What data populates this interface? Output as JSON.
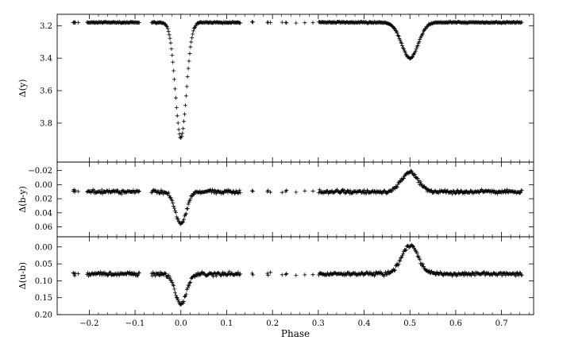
{
  "chart_data": [
    {
      "id": "y",
      "type": "scatter",
      "xlabel": "",
      "ylabel": "Δ(y)",
      "xlim": [
        -0.27,
        0.77
      ],
      "ylim": [
        3.13,
        4.04
      ],
      "y_inverted": true,
      "yticks": [
        "3.2",
        "3.4",
        "3.6",
        "3.8"
      ],
      "marker": "+",
      "baseline": 3.18,
      "eclipses": [
        {
          "phase": 0.0,
          "depth": 3.89,
          "width": 0.012
        },
        {
          "phase": 0.5,
          "depth": 3.4,
          "width": 0.018
        }
      ],
      "gaps": [
        [
          -0.09,
          -0.065
        ],
        [
          0.13,
          0.15
        ],
        [
          0.16,
          0.18
        ],
        [
          0.2,
          0.215
        ],
        [
          0.235,
          0.25
        ],
        [
          0.29,
          0.3
        ]
      ]
    },
    {
      "id": "by",
      "type": "scatter",
      "xlabel": "",
      "ylabel": "Δ(b-y)",
      "xlim": [
        -0.27,
        0.77
      ],
      "ylim": [
        -0.032,
        0.074
      ],
      "y_inverted": true,
      "yticks": [
        "−0.02",
        "0.00",
        "0.02",
        "0.04",
        "0.06"
      ],
      "marker": "+",
      "baseline": 0.01,
      "eclipses": [
        {
          "phase": 0.0,
          "depth": 0.056,
          "width": 0.012
        },
        {
          "phase": 0.5,
          "depth": -0.018,
          "width": 0.018
        }
      ]
    },
    {
      "id": "ub",
      "type": "scatter",
      "xlabel": "Phase",
      "ylabel": "Δ(u-b)",
      "xlim": [
        -0.27,
        0.77
      ],
      "ylim": [
        -0.03,
        0.2
      ],
      "y_inverted": true,
      "yticks": [
        "0.00",
        "0.05",
        "0.10",
        "0.15",
        "0.20"
      ],
      "xticks": [
        "−0.2",
        "−0.1",
        "0.0",
        "0.1",
        "0.2",
        "0.3",
        "0.4",
        "0.5",
        "0.6",
        "0.7"
      ],
      "marker": "+",
      "baseline": 0.08,
      "eclipses": [
        {
          "phase": 0.0,
          "depth": 0.17,
          "width": 0.012
        },
        {
          "phase": 0.5,
          "depth": -0.005,
          "width": 0.018
        }
      ]
    }
  ]
}
